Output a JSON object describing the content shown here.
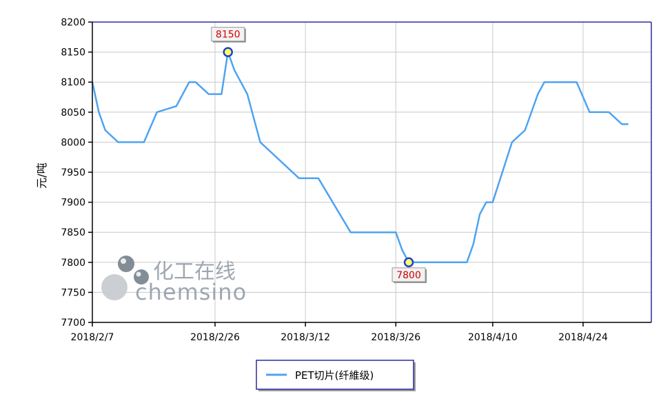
{
  "chart_data": {
    "type": "line",
    "title": "",
    "ylabel": "元/吨",
    "xlabel": "",
    "ylim": [
      7700,
      8200
    ],
    "yticks": [
      7700,
      7750,
      7800,
      7850,
      7900,
      7950,
      8000,
      8050,
      8100,
      8150,
      8200
    ],
    "xticks": [
      "2018/2/7",
      "2018/2/26",
      "2018/3/12",
      "2018/3/26",
      "2018/4/10",
      "2018/4/24"
    ],
    "grid": true,
    "legend_position": "bottom-center",
    "series": [
      {
        "name": "PET切片(纤維级)",
        "color": "#4da3f0",
        "points": [
          [
            "2018/2/7",
            8100
          ],
          [
            "2018/2/8",
            8050
          ],
          [
            "2018/2/9",
            8020
          ],
          [
            "2018/2/11",
            8000
          ],
          [
            "2018/2/15",
            8000
          ],
          [
            "2018/2/17",
            8050
          ],
          [
            "2018/2/20",
            8060
          ],
          [
            "2018/2/22",
            8100
          ],
          [
            "2018/2/23",
            8100
          ],
          [
            "2018/2/25",
            8080
          ],
          [
            "2018/2/27",
            8080
          ],
          [
            "2018/2/28",
            8150
          ],
          [
            "2018/3/1",
            8120
          ],
          [
            "2018/3/3",
            8080
          ],
          [
            "2018/3/5",
            8000
          ],
          [
            "2018/3/9",
            7960
          ],
          [
            "2018/3/11",
            7940
          ],
          [
            "2018/3/14",
            7940
          ],
          [
            "2018/3/19",
            7850
          ],
          [
            "2018/3/26",
            7850
          ],
          [
            "2018/3/27",
            7820
          ],
          [
            "2018/3/28",
            7800
          ],
          [
            "2018/4/6",
            7800
          ],
          [
            "2018/4/7",
            7830
          ],
          [
            "2018/4/8",
            7880
          ],
          [
            "2018/4/9",
            7900
          ],
          [
            "2018/4/10",
            7900
          ],
          [
            "2018/4/13",
            8000
          ],
          [
            "2018/4/15",
            8020
          ],
          [
            "2018/4/17",
            8080
          ],
          [
            "2018/4/18",
            8100
          ],
          [
            "2018/4/23",
            8100
          ],
          [
            "2018/4/25",
            8050
          ],
          [
            "2018/4/28",
            8050
          ],
          [
            "2018/4/30",
            8030
          ],
          [
            "2018/5/1",
            8030
          ]
        ]
      }
    ],
    "annotations": [
      {
        "x": "2018/2/28",
        "y": 8150,
        "text": "8150",
        "placement": "above"
      },
      {
        "x": "2018/3/28",
        "y": 7800,
        "text": "7800",
        "placement": "below"
      }
    ],
    "watermark": {
      "text_cn": "化工在线",
      "text_en": "chemsino"
    }
  }
}
